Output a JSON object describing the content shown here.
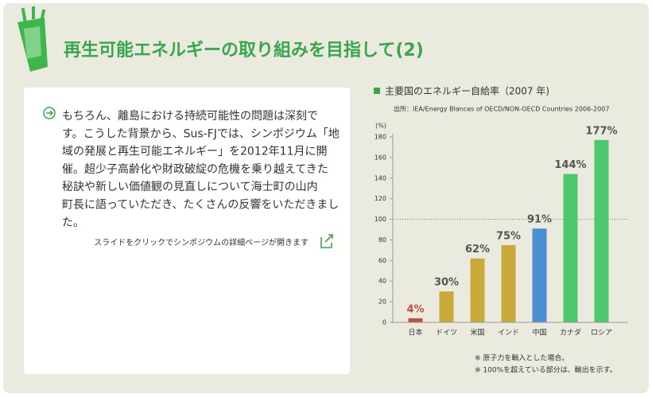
{
  "header": {
    "title": "再生可能エネルギーの取り組みを目指して(2)"
  },
  "article": {
    "lines": [
      "もちろん、離島における持続可能性の問題は深刻で",
      "す。こうした背景から、Sus-FJでは、シンポジウム「地",
      "域の発展と再生可能エネルギー」を2012年11月に開",
      "催。超少子高齢化や財政破綻の危機を乗り越えてきた",
      "秘訣や新しい価値観の見直しについて海士町の山内",
      "町長に語っていただき、たくさんの反響をいただきまし",
      "た。"
    ],
    "link": "スライドをクリックでシンポジウムの詳細ページが開きます"
  },
  "chart_data": {
    "type": "bar",
    "title": "主要国のエネルギー自給率（2007 年)",
    "subtitle": "出所：IEA/Energy Blances of OECD/NON-OECD Countries 2006-2007",
    "y_label": "(%)",
    "categories": [
      "日本",
      "ドイツ",
      "米国",
      "インド",
      "中国",
      "カナダ",
      "ロシア"
    ],
    "values": [
      4,
      30,
      62,
      75,
      91,
      144,
      177
    ],
    "value_labels": [
      "4%",
      "30%",
      "62%",
      "75%",
      "91%",
      "144%",
      "177%"
    ],
    "colors": [
      "#c0503a",
      "#c9a93a",
      "#c9a93a",
      "#c9a93a",
      "#4a8fd2",
      "#4ec86c",
      "#4ec86c"
    ],
    "ylim": [
      0,
      180
    ],
    "yticks": [
      0,
      20,
      40,
      60,
      80,
      100,
      120,
      140,
      160,
      180
    ],
    "reference_line": 100,
    "notes": [
      "※ 原子力を輸入とした場合。",
      "※ 100%を超えている部分は、輸出を示す。"
    ]
  }
}
